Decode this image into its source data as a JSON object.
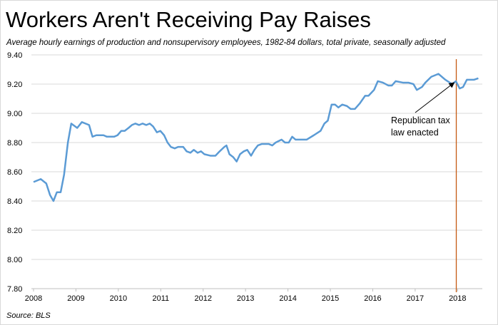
{
  "chart_data": {
    "type": "line",
    "title": "Workers Aren't Receiving Pay Raises",
    "subtitle": "Average hourly earnings of production and nonsupervisory employees, 1982-84 dollars, total private, seasonally adjusted",
    "source": "Source:  BLS",
    "x": [
      2008.0,
      2008.17,
      2008.3,
      2008.39,
      2008.47,
      2008.55,
      2008.64,
      2008.72,
      2008.81,
      2008.89,
      2009.03,
      2009.14,
      2009.31,
      2009.39,
      2009.48,
      2009.65,
      2009.73,
      2009.9,
      2009.98,
      2010.07,
      2010.15,
      2010.24,
      2010.32,
      2010.4,
      2010.49,
      2010.57,
      2010.66,
      2010.74,
      2010.82,
      2010.91,
      2010.99,
      2011.08,
      2011.16,
      2011.24,
      2011.33,
      2011.41,
      2011.53,
      2011.61,
      2011.7,
      2011.78,
      2011.87,
      2011.95,
      2012.03,
      2012.17,
      2012.29,
      2012.39,
      2012.5,
      2012.55,
      2012.62,
      2012.71,
      2012.79,
      2012.87,
      2012.96,
      2013.04,
      2013.13,
      2013.21,
      2013.29,
      2013.38,
      2013.55,
      2013.63,
      2013.71,
      2013.85,
      2013.93,
      2014.02,
      2014.1,
      2014.18,
      2014.44,
      2014.61,
      2014.77,
      2014.86,
      2014.94,
      2015.03,
      2015.11,
      2015.19,
      2015.28,
      2015.39,
      2015.48,
      2015.58,
      2015.7,
      2015.82,
      2015.9,
      2016.03,
      2016.12,
      2016.24,
      2016.37,
      2016.45,
      2016.54,
      2016.71,
      2016.84,
      2016.96,
      2017.04,
      2017.16,
      2017.24,
      2017.38,
      2017.55,
      2017.71,
      2017.87,
      2017.96,
      2018.05,
      2018.13,
      2018.22,
      2018.39,
      2018.49
    ],
    "series": [
      {
        "name": "Average hourly earnings",
        "color": "#5b9bd5",
        "values": [
          8.53,
          8.55,
          8.52,
          8.44,
          8.4,
          8.46,
          8.46,
          8.58,
          8.8,
          8.93,
          8.9,
          8.94,
          8.92,
          8.84,
          8.85,
          8.85,
          8.84,
          8.84,
          8.85,
          8.88,
          8.88,
          8.9,
          8.92,
          8.93,
          8.92,
          8.93,
          8.92,
          8.93,
          8.91,
          8.87,
          8.88,
          8.85,
          8.8,
          8.77,
          8.76,
          8.77,
          8.77,
          8.74,
          8.73,
          8.75,
          8.73,
          8.74,
          8.72,
          8.71,
          8.71,
          8.74,
          8.77,
          8.78,
          8.72,
          8.7,
          8.67,
          8.72,
          8.74,
          8.75,
          8.71,
          8.75,
          8.78,
          8.79,
          8.79,
          8.78,
          8.8,
          8.82,
          8.8,
          8.8,
          8.84,
          8.82,
          8.82,
          8.85,
          8.88,
          8.93,
          8.95,
          9.06,
          9.06,
          9.04,
          9.06,
          9.05,
          9.03,
          9.03,
          9.07,
          9.12,
          9.12,
          9.16,
          9.22,
          9.21,
          9.19,
          9.19,
          9.22,
          9.21,
          9.21,
          9.2,
          9.16,
          9.18,
          9.21,
          9.25,
          9.27,
          9.23,
          9.2,
          9.22,
          9.17,
          9.18,
          9.23,
          9.23,
          9.24
        ]
      }
    ],
    "xlim": [
      2008,
      2018.55
    ],
    "xticks": [
      2008,
      2009,
      2010,
      2011,
      2012,
      2013,
      2014,
      2015,
      2016,
      2017,
      2018
    ],
    "ylim": [
      7.8,
      9.4
    ],
    "yticks": [
      {
        "value": 7.8,
        "label": "7.80"
      },
      {
        "value": 8.0,
        "label": "8.00"
      },
      {
        "value": 8.2,
        "label": "8.20"
      },
      {
        "value": 8.4,
        "label": "8.40"
      },
      {
        "value": 8.6,
        "label": "8.60"
      },
      {
        "value": 8.8,
        "label": "8.80"
      },
      {
        "value": 9.0,
        "label": "9.00"
      },
      {
        "value": 9.2,
        "label": "9.20"
      },
      {
        "value": 9.4,
        "label": "9.40"
      }
    ],
    "grid": true,
    "annotation": {
      "lines": [
        "Republican tax",
        "law enacted"
      ],
      "x": 2017.97,
      "color": "#c55a11"
    }
  }
}
